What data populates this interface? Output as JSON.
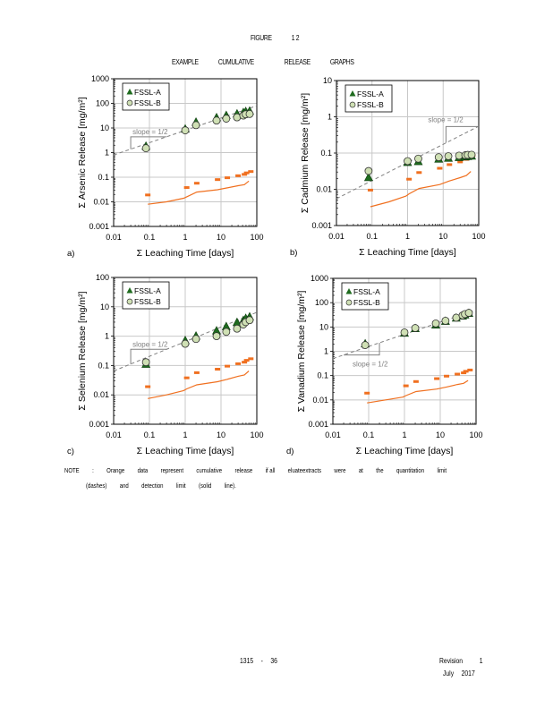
{
  "header": {
    "figure_label": [
      "FIGURE",
      "1 2"
    ],
    "subtitle_words": [
      "EXAMPLE",
      "CUMULATIVE",
      "RELEASE",
      "GRAPHS"
    ]
  },
  "colors": {
    "series_a_fill": "#1e6b1e",
    "series_b_fill": "#cfe0b4",
    "orange": "#f07020",
    "slope_line": "#808080",
    "grid": "#c8c8c8"
  },
  "chart_data": [
    {
      "type": "scatter",
      "panel_label": "a)",
      "title": "",
      "xlabel": "Σ Leaching Time [days]",
      "ylabel": "Σ Arsenic Release [mg/m²]",
      "xscale": "log",
      "yscale": "log",
      "xlim": [
        0.01,
        100
      ],
      "ylim": [
        0.001,
        1000
      ],
      "x_ticks": [
        "0.01",
        "0.1",
        "1",
        "10",
        "100"
      ],
      "y_ticks": [
        "0.001",
        "0.01",
        "0.1",
        "1",
        "10",
        "100",
        "1000"
      ],
      "grid": true,
      "legend": {
        "position": "top-left",
        "entries": [
          "FSSL-A",
          "FSSL-B"
        ]
      },
      "slope_annotation": {
        "text": "slope = 1/2",
        "position": "above-line-left"
      },
      "series": [
        {
          "name": "FSSL-A",
          "marker": "triangle",
          "x": [
            0.08,
            1,
            2,
            7.5,
            14,
            28,
            42,
            49,
            63
          ],
          "y": [
            1.8,
            9,
            17,
            26,
            32,
            37,
            42,
            46,
            48
          ]
        },
        {
          "name": "FSSL-B",
          "marker": "circle",
          "x": [
            0.08,
            1,
            2,
            7.5,
            14,
            28,
            42,
            49,
            63
          ],
          "y": [
            1.5,
            8,
            13,
            20,
            24,
            27,
            32,
            36,
            37
          ]
        },
        {
          "name": "Quantitation limit (dashes)",
          "marker": "dash",
          "x": [
            0.09,
            1.1,
            2.1,
            8,
            15,
            30,
            45,
            52,
            68
          ],
          "y": [
            0.019,
            0.038,
            0.057,
            0.08,
            0.095,
            0.115,
            0.13,
            0.15,
            0.17
          ]
        },
        {
          "name": "Detection limit (solid line)",
          "marker": "line",
          "x": [
            0.09,
            0.3,
            0.9,
            1.1,
            2.1,
            8,
            15,
            30,
            45,
            60
          ],
          "y": [
            0.008,
            0.01,
            0.014,
            0.016,
            0.025,
            0.031,
            0.037,
            0.045,
            0.05,
            0.07
          ]
        },
        {
          "name": "slope = 1/2 reference",
          "marker": "dashed-line",
          "x": [
            0.01,
            100
          ],
          "y": [
            0.8,
            80
          ]
        }
      ]
    },
    {
      "type": "scatter",
      "panel_label": "b)",
      "title": "",
      "xlabel": "Σ Leaching Time [days]",
      "ylabel": "Σ Cadmium Release [mg/m²]",
      "xscale": "log",
      "yscale": "log",
      "xlim": [
        0.01,
        100
      ],
      "ylim": [
        0.001,
        10
      ],
      "x_ticks": [
        "0.01",
        "0.1",
        "1",
        "10",
        "100"
      ],
      "y_ticks": [
        "0.001",
        "0.01",
        "0.1",
        "1",
        "10"
      ],
      "grid": true,
      "legend": {
        "position": "top-left",
        "entries": [
          "FSSL-A",
          "FSSL-B"
        ]
      },
      "slope_annotation": {
        "text": "slope = 1/2",
        "position": "above-line-right"
      },
      "series": [
        {
          "name": "FSSL-A",
          "marker": "triangle",
          "x": [
            0.08,
            1,
            2,
            7.5,
            14,
            28,
            42,
            49,
            63
          ],
          "y": [
            0.021,
            0.055,
            0.058,
            0.068,
            0.072,
            0.075,
            0.078,
            0.08,
            0.082
          ]
        },
        {
          "name": "FSSL-B",
          "marker": "circle",
          "x": [
            0.08,
            1,
            2,
            7.5,
            14,
            28,
            42,
            49,
            63
          ],
          "y": [
            0.032,
            0.06,
            0.07,
            0.077,
            0.082,
            0.085,
            0.087,
            0.089,
            0.09
          ]
        },
        {
          "name": "Quantitation limit (dashes)",
          "marker": "dash",
          "x": [
            0.09,
            1.1,
            2.1,
            8,
            15,
            30,
            45,
            52,
            68
          ],
          "y": [
            0.0095,
            0.019,
            0.029,
            0.038,
            0.048,
            0.057,
            0.067,
            0.076,
            0.086
          ]
        },
        {
          "name": "Detection limit (solid line)",
          "marker": "line",
          "x": [
            0.09,
            0.3,
            0.9,
            1.1,
            2.1,
            8,
            15,
            30,
            45,
            60
          ],
          "y": [
            0.0033,
            0.0045,
            0.0065,
            0.0075,
            0.0105,
            0.0135,
            0.017,
            0.021,
            0.024,
            0.031
          ]
        },
        {
          "name": "slope = 1/2 reference",
          "marker": "dashed-line",
          "x": [
            0.01,
            100
          ],
          "y": [
            0.0055,
            0.55
          ]
        }
      ]
    },
    {
      "type": "scatter",
      "panel_label": "c)",
      "title": "",
      "xlabel": "Σ Leaching Time [days]",
      "ylabel": "Σ Selenium Release [mg/m²]",
      "xscale": "log",
      "yscale": "log",
      "xlim": [
        0.01,
        100
      ],
      "ylim": [
        0.001,
        100
      ],
      "x_ticks": [
        "0.01",
        "0.1",
        "1",
        "10",
        "100"
      ],
      "y_ticks": [
        "0.001",
        "0.01",
        "0.1",
        "1",
        "10",
        "100"
      ],
      "grid": true,
      "legend": {
        "position": "top-left",
        "entries": [
          "FSSL-A",
          "FSSL-B"
        ]
      },
      "slope_annotation": {
        "text": "slope = 1/2",
        "position": "above-line-left"
      },
      "series": [
        {
          "name": "FSSL-A",
          "marker": "triangle",
          "x": [
            0.08,
            1,
            2,
            7.5,
            14,
            28,
            42,
            49,
            63
          ],
          "y": [
            0.11,
            0.7,
            1.0,
            1.5,
            2.1,
            2.9,
            3.4,
            4.0,
            4.5
          ]
        },
        {
          "name": "FSSL-B",
          "marker": "circle",
          "x": [
            0.08,
            1,
            2,
            7.5,
            14,
            28,
            42,
            49,
            63
          ],
          "y": [
            0.13,
            0.55,
            0.8,
            1.0,
            1.4,
            1.8,
            2.5,
            3.0,
            3.5
          ]
        },
        {
          "name": "Quantitation limit (dashes)",
          "marker": "dash",
          "x": [
            0.09,
            1.1,
            2.1,
            8,
            15,
            30,
            45,
            52,
            68
          ],
          "y": [
            0.019,
            0.038,
            0.057,
            0.075,
            0.095,
            0.115,
            0.13,
            0.15,
            0.17
          ]
        },
        {
          "name": "Detection limit (solid line)",
          "marker": "line",
          "x": [
            0.09,
            0.3,
            0.9,
            1.1,
            2.1,
            8,
            15,
            30,
            45,
            60
          ],
          "y": [
            0.0075,
            0.01,
            0.014,
            0.016,
            0.022,
            0.028,
            0.034,
            0.043,
            0.048,
            0.065
          ]
        },
        {
          "name": "slope = 1/2 reference",
          "marker": "dashed-line",
          "x": [
            0.01,
            100
          ],
          "y": [
            0.065,
            6.5
          ]
        }
      ]
    },
    {
      "type": "scatter",
      "panel_label": "d)",
      "title": "",
      "xlabel": "Σ Leaching Time [days]",
      "ylabel": "Σ Vanadium Release [mg/m²]",
      "xscale": "log",
      "yscale": "log",
      "xlim": [
        0.01,
        100
      ],
      "ylim": [
        0.001,
        1000
      ],
      "x_ticks": [
        "0.01",
        "0.1",
        "1",
        "10",
        "100"
      ],
      "y_ticks": [
        "0.001",
        "0.01",
        "0.1",
        "1",
        "10",
        "100",
        "1000"
      ],
      "grid": true,
      "legend": {
        "position": "top-left",
        "entries": [
          "FSSL-A",
          "FSSL-B"
        ]
      },
      "slope_annotation": {
        "text": "slope = 1/2",
        "position": "below-line-left"
      },
      "series": [
        {
          "name": "FSSL-A",
          "marker": "triangle",
          "x": [
            0.08,
            1,
            2,
            7.5,
            14,
            28,
            42,
            49,
            63
          ],
          "y": [
            2.0,
            5.5,
            8.5,
            12,
            17,
            23,
            28,
            31,
            36
          ]
        },
        {
          "name": "FSSL-B",
          "marker": "circle",
          "x": [
            0.08,
            1,
            2,
            7.5,
            14,
            28,
            42,
            49,
            63
          ],
          "y": [
            1.8,
            6,
            9,
            14,
            18,
            24,
            30,
            34,
            38
          ]
        },
        {
          "name": "Quantitation limit (dashes)",
          "marker": "dash",
          "x": [
            0.09,
            1.1,
            2.1,
            8,
            15,
            30,
            45,
            52,
            68
          ],
          "y": [
            0.019,
            0.038,
            0.057,
            0.075,
            0.095,
            0.115,
            0.13,
            0.15,
            0.17
          ]
        },
        {
          "name": "Detection limit (solid line)",
          "marker": "line",
          "x": [
            0.09,
            0.3,
            0.9,
            1.1,
            2.1,
            8,
            15,
            30,
            45,
            60
          ],
          "y": [
            0.0075,
            0.01,
            0.013,
            0.015,
            0.022,
            0.028,
            0.034,
            0.043,
            0.048,
            0.063
          ]
        },
        {
          "name": "slope = 1/2 reference",
          "marker": "dashed-line",
          "x": [
            0.01,
            100
          ],
          "y": [
            0.5,
            50
          ]
        }
      ]
    }
  ],
  "note": {
    "line1": [
      "NOTE",
      ":",
      "Orange",
      "data",
      "represent",
      "cumulative",
      "release",
      "if all",
      "eluateextracts",
      "were",
      "at",
      "the",
      "quantitation",
      "limit"
    ],
    "line2": [
      "(dashes)",
      "and",
      "detection",
      "limit",
      "(solid",
      "line)."
    ]
  },
  "footer": {
    "page_number": [
      "1315",
      "-",
      "36"
    ],
    "revision": [
      "Revision",
      "1"
    ],
    "date": [
      "July",
      "2017"
    ]
  }
}
